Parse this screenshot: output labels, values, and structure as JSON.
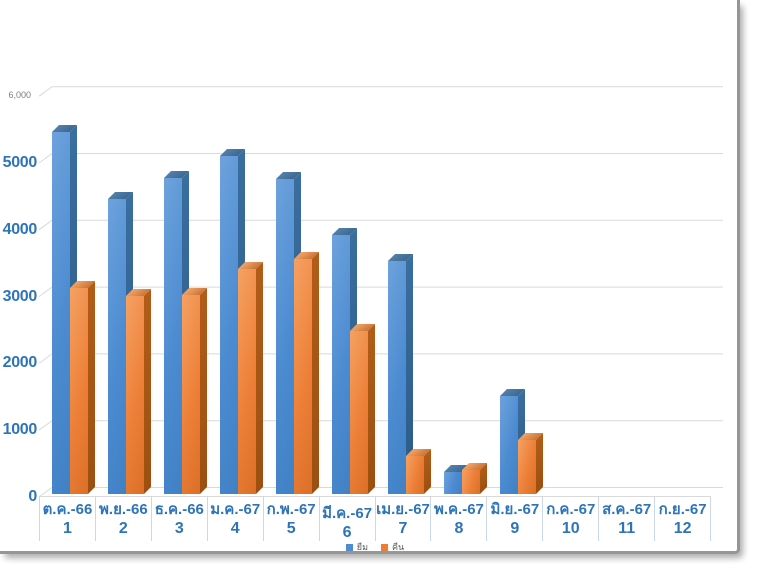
{
  "colors": {
    "axis_label": "#2E74B8",
    "gridline": "#D9D9D9",
    "separator": "#CBD8EA",
    "legend_text": "#595959",
    "ymax_label": "#7F7F7F",
    "series_blue": "#4E8CCE",
    "series_orange": "#ED7D31",
    "page_border": "#969696"
  },
  "chart_data": {
    "type": "bar",
    "style": "3d-clustered-column",
    "title": "",
    "categories": [
      "ต.ค.-66",
      "พ.ย.-66",
      "ธ.ค.-66",
      "ม.ค.-67",
      "ก.พ.-67",
      "มี.ค.-67",
      "เม.ย.-67",
      "พ.ค.-67",
      "มิ.ย.-67",
      "ก.ค.-67",
      "ส.ค.-67",
      "ก.ย.-67"
    ],
    "category_numbers": [
      "1",
      "2",
      "3",
      "4",
      "5",
      "6",
      "7",
      "8",
      "9",
      "10",
      "11",
      "12"
    ],
    "series": [
      {
        "name": "ยืม",
        "color": "#4E8CCE",
        "values": [
          5480,
          4460,
          4780,
          5110,
          4770,
          3920,
          3520,
          340,
          1490,
          0,
          0,
          0
        ]
      },
      {
        "name": "คืน",
        "color": "#ED7D31",
        "values": [
          3120,
          3000,
          3010,
          3410,
          3560,
          2470,
          570,
          360,
          810,
          0,
          0,
          0
        ]
      }
    ],
    "ylim": [
      0,
      6000
    ],
    "ytick_step": 1000,
    "yticks_labels": [
      "0",
      "1000",
      "2000",
      "3000",
      "4000",
      "5000"
    ],
    "ymax_label": "6,000",
    "grid": true,
    "legend_position": "bottom"
  }
}
